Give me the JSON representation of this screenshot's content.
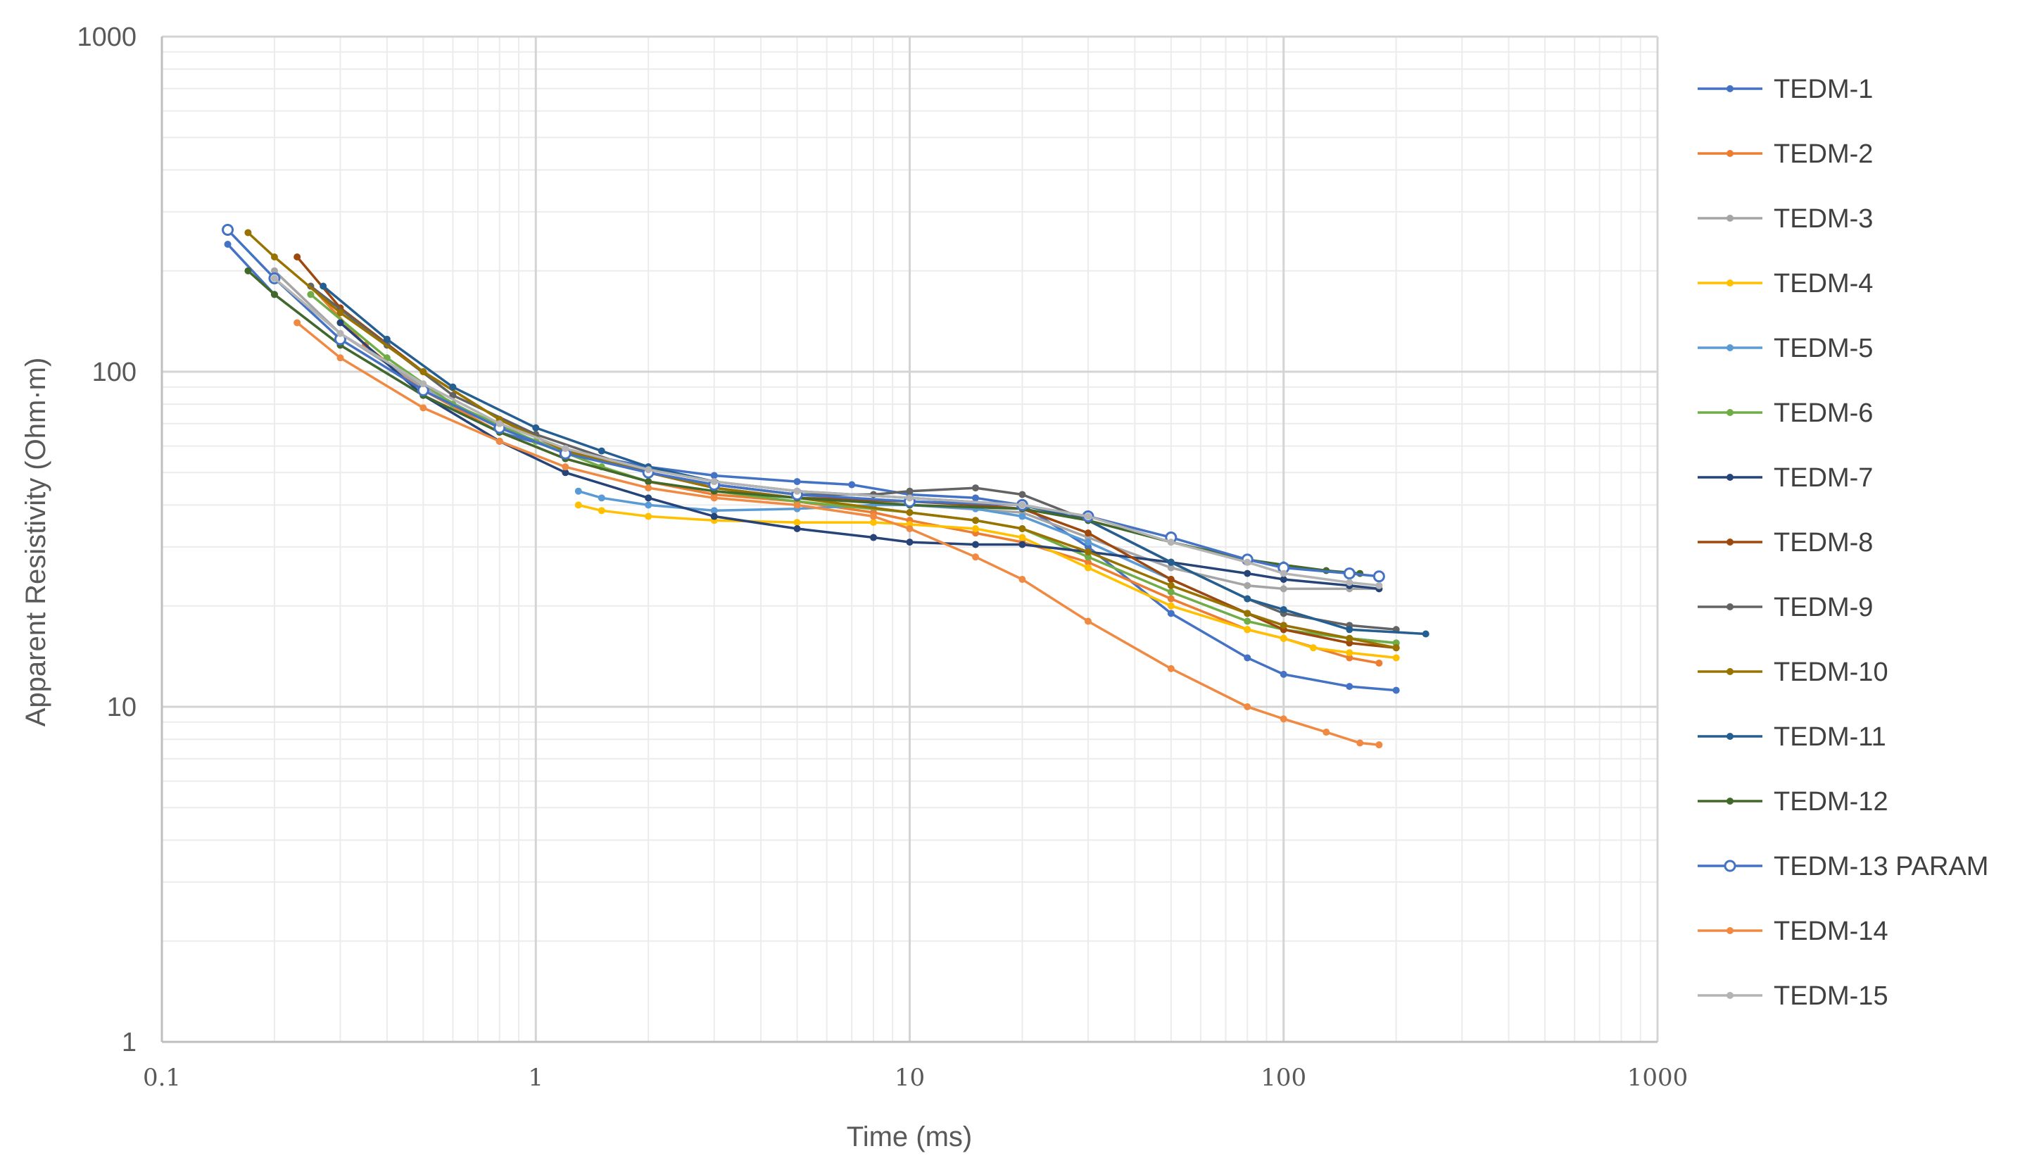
{
  "chart_data": {
    "type": "line",
    "title": "",
    "xlabel": "Time (ms)",
    "ylabel": "Apparent Resistivity (Ohm·m)",
    "x_scale": "log",
    "y_scale": "log",
    "xlim": [
      0.1,
      1000
    ],
    "ylim": [
      1,
      1000
    ],
    "x_ticks": [
      "0.1",
      "1",
      "10",
      "100",
      "1000"
    ],
    "y_ticks": [
      "1",
      "10",
      "100",
      "1000"
    ],
    "grid": "major and minor",
    "legend_position": "right",
    "series": [
      {
        "name": "TEDM-1",
        "color": "#4472c4",
        "marker": "dot",
        "x": [
          0.15,
          0.2,
          0.3,
          0.5,
          0.8,
          1.2,
          2,
          3,
          5,
          7,
          10,
          15,
          20,
          30,
          50,
          80,
          100,
          150,
          200
        ],
        "y": [
          240,
          170,
          120,
          85,
          66,
          58,
          52,
          49,
          47,
          46,
          43,
          42,
          40,
          30,
          19,
          14,
          12.5,
          11.5,
          11.2
        ]
      },
      {
        "name": "TEDM-2",
        "color": "#ed7d31",
        "marker": "dot",
        "x": [
          0.25,
          0.35,
          0.5,
          0.8,
          1.2,
          2,
          3,
          5,
          8,
          10,
          15,
          20,
          30,
          50,
          80,
          100,
          150,
          180
        ],
        "y": [
          180,
          120,
          88,
          66,
          55,
          47,
          43,
          41,
          38,
          36,
          33,
          31,
          27,
          21,
          17,
          16,
          14,
          13.5
        ]
      },
      {
        "name": "TEDM-3",
        "color": "#a5a5a5",
        "marker": "dot",
        "x": [
          0.2,
          0.3,
          0.5,
          0.8,
          1.2,
          2,
          3,
          5,
          10,
          20,
          30,
          50,
          80,
          100,
          150,
          180
        ],
        "y": [
          200,
          130,
          90,
          68,
          58,
          50,
          46,
          43,
          40,
          38,
          32,
          26,
          23,
          22.5,
          22.5,
          22.5
        ]
      },
      {
        "name": "TEDM-4",
        "color": "#ffc000",
        "marker": "dot",
        "x": [
          1.3,
          1.5,
          2,
          3,
          5,
          8,
          10,
          15,
          20,
          30,
          50,
          80,
          100,
          120,
          150,
          200
        ],
        "y": [
          40,
          38.5,
          37,
          36,
          35.5,
          35.5,
          35,
          34,
          32,
          26,
          20,
          17,
          16,
          15,
          14.5,
          14
        ]
      },
      {
        "name": "TEDM-5",
        "color": "#5b9bd5",
        "marker": "dot",
        "x": [
          1.3,
          1.5,
          2,
          3,
          5,
          8,
          10,
          15,
          20,
          30,
          50,
          80,
          100,
          150,
          200
        ],
        "y": [
          44,
          42,
          40,
          38.5,
          39,
          40,
          40,
          39,
          37,
          31,
          24,
          19,
          17.5,
          16,
          15.5
        ]
      },
      {
        "name": "TEDM-6",
        "color": "#70ad47",
        "marker": "dot",
        "x": [
          0.25,
          0.4,
          0.6,
          1,
          1.5,
          2,
          3,
          5,
          10,
          15,
          20,
          30,
          50,
          80,
          100,
          150,
          200
        ],
        "y": [
          170,
          110,
          80,
          62,
          52,
          47,
          44,
          41,
          38,
          36,
          34,
          28,
          22,
          18,
          17,
          16,
          15.5
        ]
      },
      {
        "name": "TEDM-7",
        "color": "#264478",
        "marker": "dot",
        "x": [
          0.3,
          0.5,
          0.8,
          1.2,
          2,
          3,
          5,
          8,
          10,
          15,
          20,
          30,
          50,
          80,
          100,
          150,
          180
        ],
        "y": [
          140,
          85,
          62,
          50,
          42,
          37,
          34,
          32,
          31,
          30.5,
          30.5,
          29,
          27,
          25,
          24,
          23,
          22.5
        ]
      },
      {
        "name": "TEDM-8",
        "color": "#9e480e",
        "marker": "dot",
        "x": [
          0.23,
          0.3,
          0.5,
          0.8,
          1.2,
          2,
          3,
          5,
          10,
          15,
          20,
          30,
          50,
          80,
          100,
          150,
          200
        ],
        "y": [
          220,
          155,
          100,
          72,
          58,
          50,
          45,
          42,
          41,
          40,
          39,
          33,
          24,
          19,
          17,
          15.5,
          15
        ]
      },
      {
        "name": "TEDM-9",
        "color": "#636363",
        "marker": "dot",
        "x": [
          0.25,
          0.4,
          0.6,
          1,
          2,
          3,
          5,
          8,
          10,
          15,
          20,
          30,
          50,
          80,
          100,
          150,
          200
        ],
        "y": [
          180,
          120,
          85,
          65,
          50,
          46,
          43,
          43,
          44,
          45,
          43,
          36,
          27,
          21,
          19,
          17.5,
          17
        ]
      },
      {
        "name": "TEDM-10",
        "color": "#997300",
        "marker": "dot",
        "x": [
          0.17,
          0.2,
          0.3,
          0.5,
          0.8,
          1.2,
          2,
          3,
          5,
          10,
          15,
          20,
          30,
          50,
          80,
          100,
          150,
          200
        ],
        "y": [
          260,
          220,
          150,
          100,
          72,
          58,
          50,
          45,
          42,
          38,
          36,
          34,
          29,
          23,
          19,
          17.5,
          16,
          15
        ]
      },
      {
        "name": "TEDM-11",
        "color": "#255e91",
        "marker": "dot",
        "x": [
          0.27,
          0.4,
          0.6,
          1,
          1.5,
          2,
          3,
          5,
          10,
          20,
          30,
          50,
          80,
          100,
          150,
          240
        ],
        "y": [
          180,
          125,
          90,
          68,
          58,
          52,
          47,
          44,
          42,
          40,
          36,
          27,
          21,
          19.5,
          17,
          16.5
        ]
      },
      {
        "name": "TEDM-12",
        "color": "#43682b",
        "marker": "dot",
        "x": [
          0.17,
          0.2,
          0.3,
          0.5,
          0.8,
          1.2,
          2,
          3,
          5,
          10,
          20,
          30,
          50,
          80,
          100,
          130,
          160
        ],
        "y": [
          200,
          170,
          120,
          85,
          66,
          55,
          47,
          44,
          42,
          40,
          39,
          36,
          31,
          27.5,
          26.5,
          25.5,
          25
        ]
      },
      {
        "name": "TEDM-13 PARAM",
        "color": "#4472c4",
        "marker": "circle",
        "x": [
          0.15,
          0.2,
          0.3,
          0.5,
          0.8,
          1.2,
          2,
          3,
          5,
          10,
          20,
          30,
          50,
          80,
          100,
          150,
          180
        ],
        "y": [
          265,
          190,
          125,
          88,
          68,
          57,
          50,
          46,
          43,
          41,
          40,
          37,
          32,
          27.5,
          26,
          25,
          24.5
        ]
      },
      {
        "name": "TEDM-14",
        "color": "#f08a42",
        "marker": "dot",
        "x": [
          0.23,
          0.3,
          0.5,
          0.8,
          1.2,
          2,
          3,
          5,
          8,
          10,
          15,
          20,
          30,
          50,
          80,
          100,
          130,
          160,
          180
        ],
        "y": [
          140,
          110,
          78,
          62,
          52,
          45,
          42,
          40,
          37,
          34,
          28,
          24,
          18,
          13,
          10,
          9.2,
          8.4,
          7.8,
          7.7
        ]
      },
      {
        "name": "TEDM-15",
        "color": "#b4b4b4",
        "marker": "dot",
        "x": [
          0.2,
          0.3,
          0.5,
          0.8,
          1.2,
          2,
          3,
          5,
          10,
          20,
          30,
          50,
          80,
          100,
          150,
          180
        ],
        "y": [
          190,
          130,
          92,
          70,
          59,
          51,
          47,
          44,
          42,
          40,
          37,
          31,
          27,
          25,
          23.5,
          23
        ]
      }
    ]
  }
}
